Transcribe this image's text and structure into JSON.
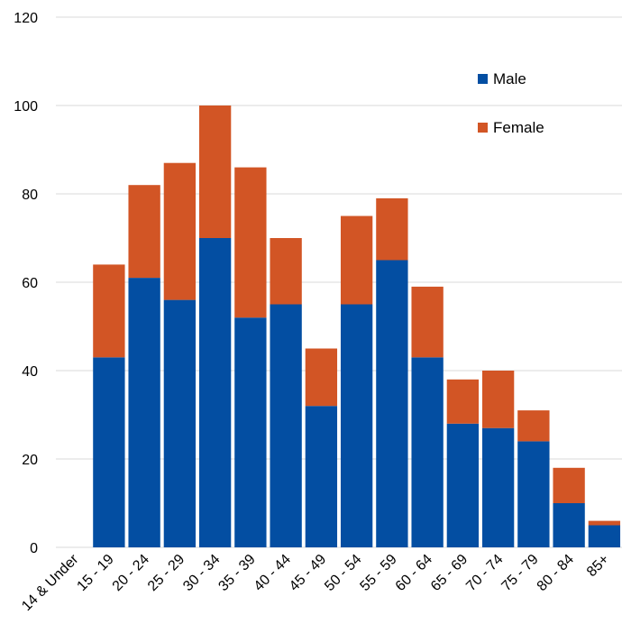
{
  "chart_data": {
    "type": "bar",
    "stacked": true,
    "categories": [
      "14 & Under",
      "15 - 19",
      "20 - 24",
      "25 - 29",
      "30 - 34",
      "35 - 39",
      "40 - 44",
      "45 - 49",
      "50 - 54",
      "55 - 59",
      "60 - 64",
      "65 - 69",
      "70 - 74",
      "75 - 79",
      "80 - 84",
      "85+"
    ],
    "series": [
      {
        "name": "Male",
        "values": [
          0,
          43,
          61,
          56,
          70,
          52,
          55,
          32,
          55,
          65,
          43,
          28,
          27,
          24,
          10,
          5
        ]
      },
      {
        "name": "Female",
        "values": [
          0,
          21,
          21,
          31,
          30,
          34,
          15,
          13,
          20,
          14,
          16,
          10,
          13,
          7,
          8,
          1
        ]
      }
    ],
    "ylim": [
      0,
      120
    ],
    "yticks": [
      0,
      20,
      40,
      60,
      80,
      100,
      120
    ],
    "grid": true,
    "legend": "right",
    "colors": {
      "Male": "#034EA2",
      "Female": "#D25525",
      "grid": "#D9D9D9"
    }
  }
}
